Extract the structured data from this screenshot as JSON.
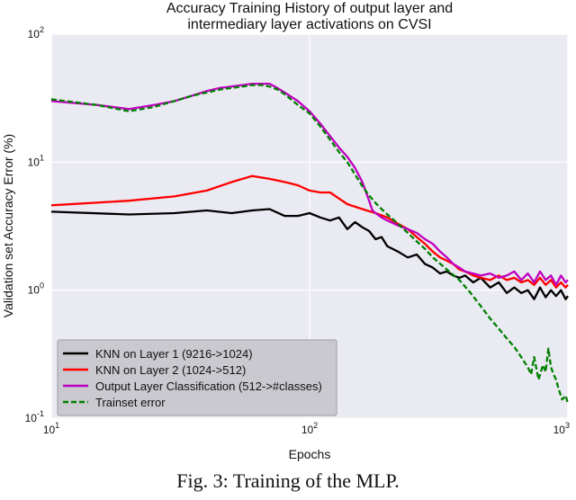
{
  "caption": "Fig. 3: Training of the MLP.",
  "chart_data": {
    "type": "line",
    "title": [
      "Accuracy Training History of output layer and",
      "intermediary layer activations on CVSI"
    ],
    "xlabel": "Epochs",
    "ylabel": "Validation set Accuracy Error (%)",
    "xscale": "log",
    "yscale": "log",
    "xlim": [
      10,
      1000
    ],
    "ylim": [
      0.1,
      100
    ],
    "xticks": [
      {
        "base": "10",
        "exp": "1",
        "value": 10
      },
      {
        "base": "10",
        "exp": "2",
        "value": 100
      },
      {
        "base": "10",
        "exp": "3",
        "value": 1000
      }
    ],
    "yticks": [
      {
        "base": "10",
        "exp": "-1",
        "value": 0.1
      },
      {
        "base": "10",
        "exp": "0",
        "value": 1
      },
      {
        "base": "10",
        "exp": "1",
        "value": 10
      },
      {
        "base": "10",
        "exp": "2",
        "value": 100
      }
    ],
    "grid": true,
    "legend_position": "lower-left",
    "series": [
      {
        "name": "KNN on Layer 1 (9216->1024)",
        "color": "#000000",
        "style": "solid",
        "x": [
          10,
          20,
          30,
          40,
          50,
          60,
          70,
          80,
          90,
          100,
          110,
          120,
          130,
          140,
          150,
          160,
          170,
          180,
          190,
          200,
          220,
          240,
          260,
          280,
          300,
          320,
          340,
          360,
          380,
          400,
          430,
          460,
          500,
          540,
          580,
          620,
          660,
          700,
          740,
          780,
          820,
          860,
          900,
          940,
          980,
          1000
        ],
        "values": [
          4.1,
          3.9,
          4.0,
          4.2,
          4.0,
          4.2,
          4.3,
          3.8,
          3.8,
          4.0,
          3.7,
          3.5,
          3.7,
          3.0,
          3.4,
          3.1,
          2.9,
          2.5,
          2.6,
          2.2,
          2.0,
          1.8,
          1.9,
          1.6,
          1.5,
          1.35,
          1.4,
          1.3,
          1.25,
          1.3,
          1.15,
          1.25,
          1.05,
          1.15,
          0.95,
          1.05,
          0.95,
          1.0,
          0.85,
          1.05,
          0.88,
          1.0,
          0.9,
          1.0,
          0.85,
          0.9
        ]
      },
      {
        "name": "KNN on Layer 2 (1024->512)",
        "color": "#ff0000",
        "style": "solid",
        "x": [
          10,
          20,
          30,
          40,
          50,
          60,
          70,
          80,
          90,
          100,
          110,
          120,
          140,
          160,
          180,
          200,
          220,
          240,
          260,
          280,
          300,
          320,
          340,
          360,
          380,
          400,
          430,
          460,
          500,
          540,
          580,
          620,
          660,
          700,
          740,
          780,
          820,
          860,
          900,
          940,
          980,
          1000
        ],
        "values": [
          4.6,
          5.0,
          5.4,
          6.0,
          7.0,
          7.8,
          7.4,
          7.0,
          6.6,
          6.0,
          5.8,
          5.8,
          4.7,
          4.3,
          4.0,
          3.7,
          3.3,
          3.0,
          2.6,
          2.3,
          2.0,
          1.8,
          1.7,
          1.6,
          1.45,
          1.4,
          1.3,
          1.25,
          1.2,
          1.3,
          1.2,
          1.25,
          1.15,
          1.2,
          1.1,
          1.25,
          1.1,
          1.2,
          1.05,
          1.15,
          1.05,
          1.1
        ]
      },
      {
        "name": "Output Layer Classification (512->#classes)",
        "color": "#bf00bf",
        "style": "solid",
        "x": [
          10,
          15,
          20,
          25,
          30,
          35,
          40,
          45,
          50,
          55,
          60,
          65,
          70,
          75,
          80,
          90,
          100,
          110,
          120,
          130,
          140,
          150,
          160,
          170,
          175,
          180,
          190,
          200,
          220,
          240,
          260,
          280,
          300,
          320,
          340,
          360,
          380,
          400,
          430,
          460,
          500,
          540,
          580,
          620,
          660,
          700,
          740,
          780,
          820,
          860,
          900,
          940,
          980,
          1000
        ],
        "values": [
          30,
          28,
          26,
          28,
          30,
          33,
          36,
          38,
          39,
          40,
          41,
          41,
          41,
          38,
          35,
          30,
          25,
          20,
          16,
          13,
          11,
          9,
          7,
          5,
          4.2,
          4.0,
          3.7,
          3.5,
          3.2,
          3.0,
          2.8,
          2.5,
          2.3,
          2.0,
          1.8,
          1.6,
          1.5,
          1.4,
          1.35,
          1.3,
          1.35,
          1.25,
          1.3,
          1.4,
          1.2,
          1.35,
          1.15,
          1.4,
          1.2,
          1.3,
          1.1,
          1.3,
          1.15,
          1.2
        ]
      },
      {
        "name": "Trainset error",
        "color": "#008000",
        "style": "dashed",
        "x": [
          10,
          15,
          20,
          25,
          30,
          35,
          40,
          45,
          50,
          55,
          60,
          65,
          70,
          75,
          80,
          90,
          100,
          110,
          120,
          130,
          140,
          150,
          160,
          170,
          180,
          190,
          200,
          220,
          240,
          260,
          280,
          300,
          340,
          380,
          420,
          460,
          500,
          540,
          580,
          620,
          660,
          700,
          720,
          740,
          770,
          800,
          820,
          840,
          860,
          880,
          900,
          920,
          950,
          980,
          1000
        ],
        "values": [
          31,
          28,
          25,
          27,
          30,
          33,
          35,
          37,
          38,
          39,
          40,
          40,
          39,
          37,
          34,
          28,
          24,
          19,
          15,
          12,
          10,
          8,
          6.5,
          5.5,
          4.8,
          4.3,
          3.9,
          3.3,
          2.8,
          2.4,
          2.1,
          1.8,
          1.45,
          1.2,
          0.95,
          0.75,
          0.6,
          0.5,
          0.42,
          0.36,
          0.3,
          0.25,
          0.22,
          0.3,
          0.2,
          0.26,
          0.23,
          0.35,
          0.25,
          0.22,
          0.2,
          0.17,
          0.14,
          0.15,
          0.13
        ]
      }
    ]
  }
}
